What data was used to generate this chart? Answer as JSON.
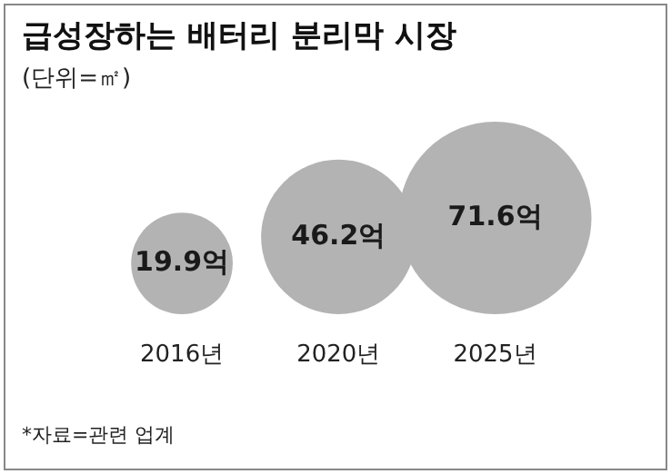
{
  "chart_data": {
    "type": "other",
    "title": "급성장하는 배터리 분리막 시장",
    "subtitle": "(단위=㎡)",
    "categories": [
      "2016년",
      "2020년",
      "2025년"
    ],
    "values": [
      19.9,
      46.2,
      71.6
    ],
    "value_labels": [
      "19.9억",
      "46.2억",
      "71.6억"
    ],
    "color": "#b3b3b3",
    "annotations": [
      "*자료=관련 업계"
    ]
  }
}
